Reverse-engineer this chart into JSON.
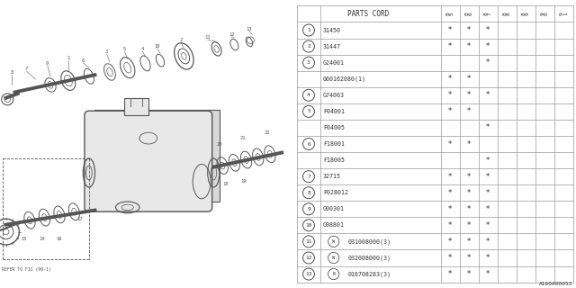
{
  "bg_color": "#ffffff",
  "table_header": "PARTS CORD",
  "year_cols": [
    "85",
    "86",
    "87",
    "88",
    "89",
    "90",
    "91"
  ],
  "year_col_labels": [
    "8\n5",
    "8\n6",
    "8\n7",
    "8\n8",
    "8\n9",
    "9\n0",
    "9\n1"
  ],
  "rows": [
    {
      "num": "1",
      "circle": true,
      "prefix": "",
      "code": "31450",
      "marks": [
        1,
        1,
        1,
        0,
        0,
        0,
        0
      ]
    },
    {
      "num": "2",
      "circle": true,
      "prefix": "",
      "code": "31447",
      "marks": [
        1,
        1,
        1,
        0,
        0,
        0,
        0
      ]
    },
    {
      "num": "3a",
      "circle": true,
      "prefix": "",
      "code": "G24001",
      "marks": [
        0,
        0,
        1,
        0,
        0,
        0,
        0
      ]
    },
    {
      "num": "3b",
      "circle": false,
      "prefix": "",
      "code": "060162080(1)",
      "marks": [
        1,
        1,
        0,
        0,
        0,
        0,
        0
      ]
    },
    {
      "num": "4",
      "circle": true,
      "prefix": "",
      "code": "G74003",
      "marks": [
        1,
        1,
        1,
        0,
        0,
        0,
        0
      ]
    },
    {
      "num": "5a",
      "circle": true,
      "prefix": "",
      "code": "F04001",
      "marks": [
        1,
        1,
        0,
        0,
        0,
        0,
        0
      ]
    },
    {
      "num": "5b",
      "circle": false,
      "prefix": "",
      "code": "F04005",
      "marks": [
        0,
        0,
        1,
        0,
        0,
        0,
        0
      ]
    },
    {
      "num": "6a",
      "circle": true,
      "prefix": "",
      "code": "F18001",
      "marks": [
        1,
        1,
        0,
        0,
        0,
        0,
        0
      ]
    },
    {
      "num": "6b",
      "circle": false,
      "prefix": "",
      "code": "F18005",
      "marks": [
        0,
        0,
        1,
        0,
        0,
        0,
        0
      ]
    },
    {
      "num": "7",
      "circle": true,
      "prefix": "",
      "code": "32715",
      "marks": [
        1,
        1,
        1,
        0,
        0,
        0,
        0
      ]
    },
    {
      "num": "8",
      "circle": true,
      "prefix": "",
      "code": "F028012",
      "marks": [
        1,
        1,
        1,
        0,
        0,
        0,
        0
      ]
    },
    {
      "num": "9",
      "circle": true,
      "prefix": "",
      "code": "G00301",
      "marks": [
        1,
        1,
        1,
        0,
        0,
        0,
        0
      ]
    },
    {
      "num": "10",
      "circle": true,
      "prefix": "",
      "code": "G98801",
      "marks": [
        1,
        1,
        1,
        0,
        0,
        0,
        0
      ]
    },
    {
      "num": "11",
      "circle": true,
      "prefix": "W",
      "code": "031008000(3)",
      "marks": [
        1,
        1,
        1,
        0,
        0,
        0,
        0
      ]
    },
    {
      "num": "12",
      "circle": true,
      "prefix": "W",
      "code": "032008000(3)",
      "marks": [
        1,
        1,
        1,
        0,
        0,
        0,
        0
      ]
    },
    {
      "num": "13",
      "circle": true,
      "prefix": "R",
      "code": "016708283(3)",
      "marks": [
        1,
        1,
        1,
        0,
        0,
        0,
        0
      ]
    }
  ],
  "watermark": "A160A00053",
  "font_color": "#333333",
  "grid_color": "#999999",
  "asterisk": "*",
  "diagram_color": "#555555"
}
